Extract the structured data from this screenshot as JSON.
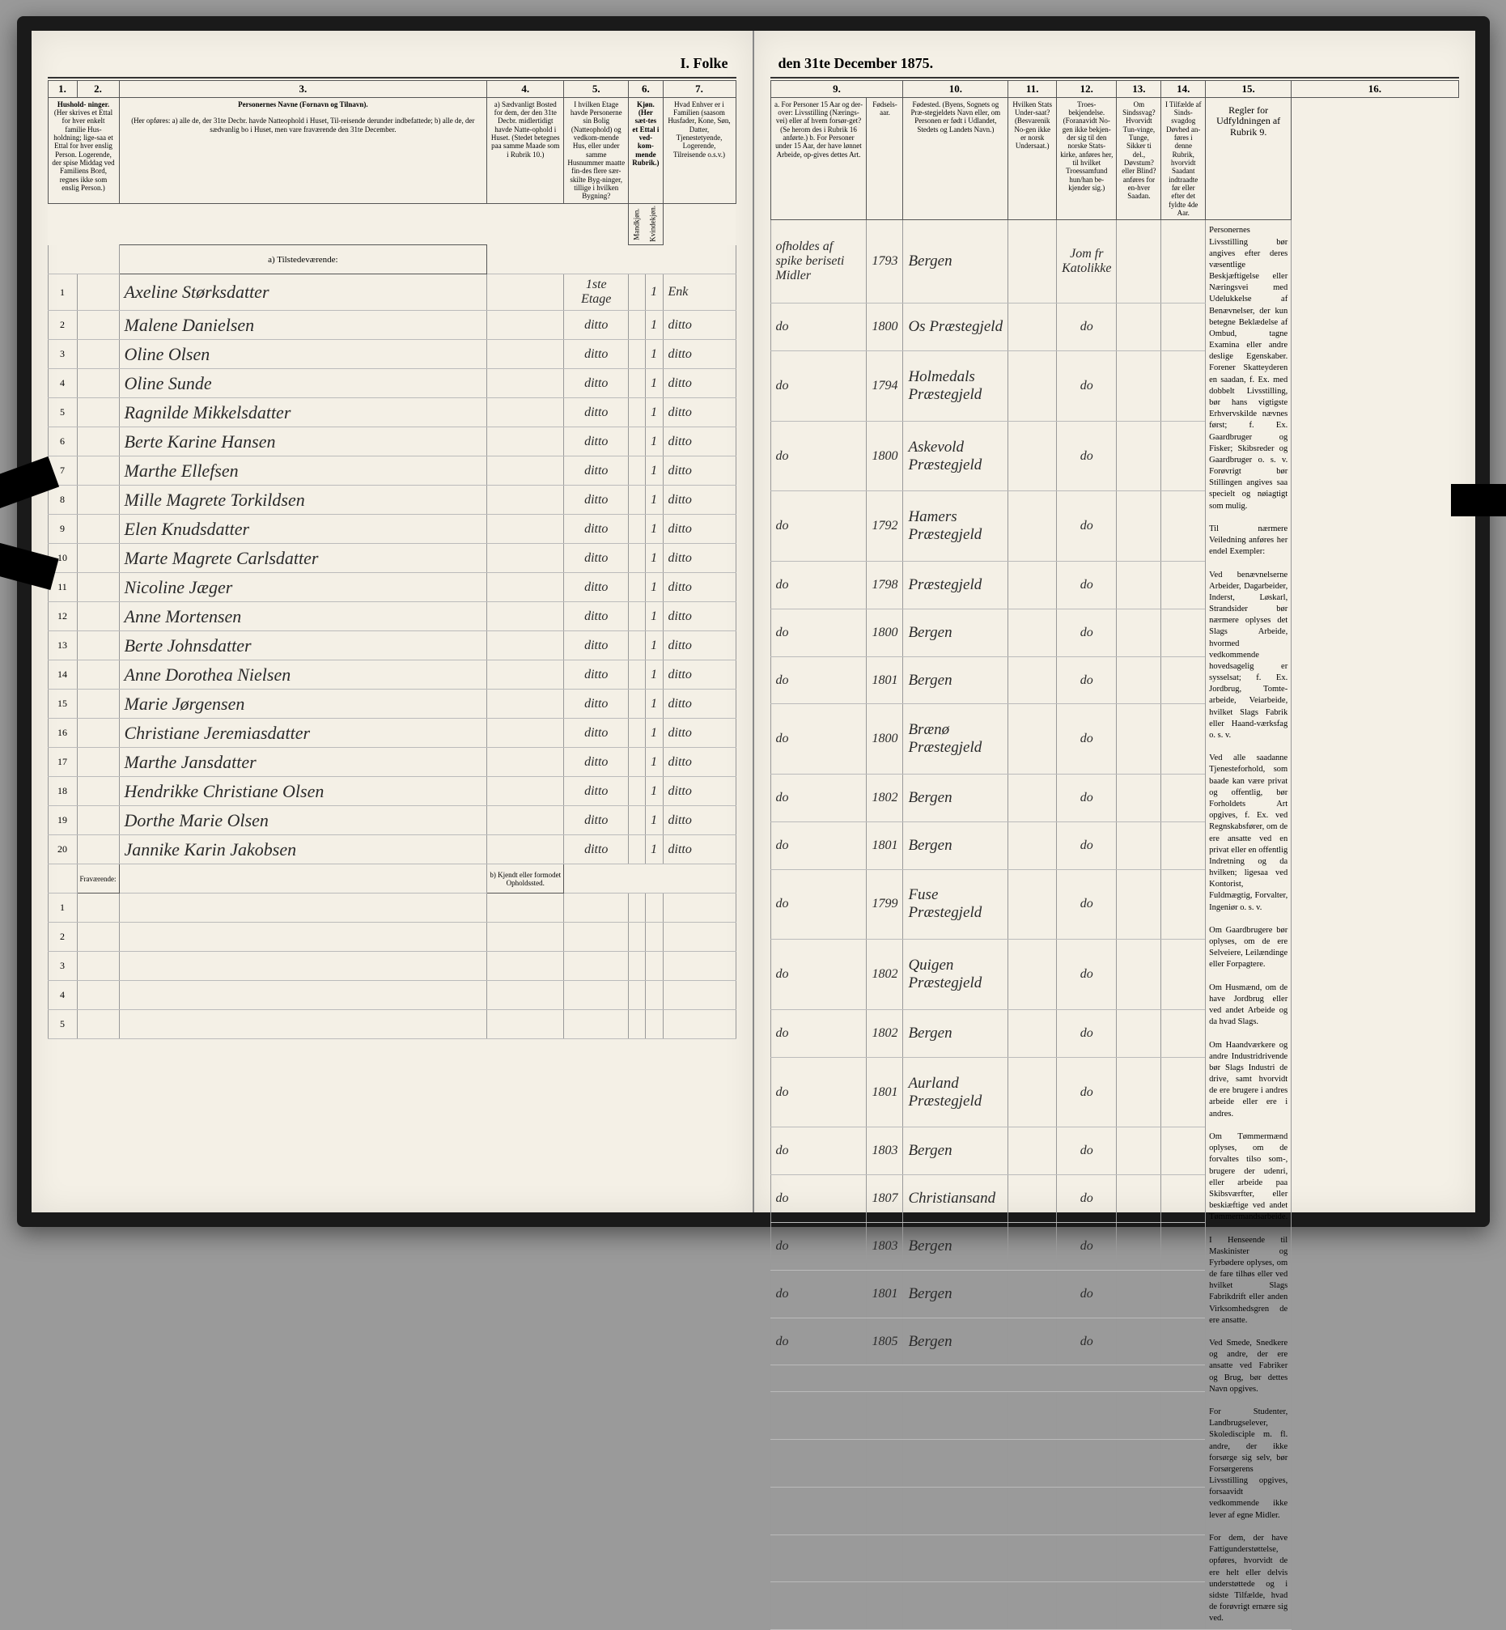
{
  "header": {
    "title_left": "I. Folke",
    "title_right": "den 31te December 1875."
  },
  "left_columns": {
    "nums": [
      "1.",
      "2.",
      "3.",
      "4.",
      "5.",
      "6.",
      "7."
    ],
    "h1": "Hushold-\nninger.",
    "h1_sub": "(Her skrives et Ettal for hver enkelt familie Hus-holdning; lige-saa et Ettal for hver enslig Person.\nLogerende, der spise Middag ved Familiens Bord, regnes ikke som enslig Person.)",
    "h3": "Personernes Navne (Fornavn og Tilnavn).",
    "h3_sub": "(Her opføres:\na) alle de, der 31te Decbr. havde Natteophold i Huset, Til-reisende derunder indbefattede;\nb) alle de, der sædvanlig bo i Huset, men vare fraværende den 31te December.",
    "h4": "a) Sædvanligt Bosted for dem, der den 31te Decbr. midlertidigt havde Natte-ophold i Huset.\n(Stedet betegnes paa samme Maade som i Rubrik 10.)",
    "h5": "I hvilken Etage havde Personerne sin Bolig (Natteophold) og vedkom-mende Hus, eller under samme Husnummer maatte fin-des flere sær-skilte Byg-ninger, tillige i hvilken Bygning?",
    "h6": "Kjøn.\n(Her sæt-tes et Ettal i ved-kom-mende Rubrik.)",
    "h6a": "Mandkjøn.",
    "h6b": "Kvindekjøn.",
    "h7": "Hvad Enhver er i Familien\n(saasom Husfader, Kone, Søn, Datter, Tjenestetyende, Logerende, Tilreisende o.s.v.)"
  },
  "right_columns": {
    "nums": [
      "9.",
      "10.",
      "11.",
      "12.",
      "13.",
      "14.",
      "15.",
      "16."
    ],
    "h9": "a. For Personer 15 Aar og der-over: Livsstilling (Nærings-vei) eller af hvem forsør-get? (Se herom des i Rubrik 16 anførte.)\nb. For Personer under 15 Aar, der have lønnet Arbeide, op-gives dettes Art.",
    "h9b": "Fødsels-aar.",
    "h10": "Fødested.\n(Byens, Sognets og Præ-stegjeldets Navn eller, om Personen er født i Udlandet, Stedets og Landets Navn.)",
    "h11": "Hvilken Stats Under-saat?\n(Besvarenik No-gen ikke er norsk Undersaat.)",
    "h12": "Troes-bekjendelse.\n(Foranavidt No-gen ikke bekjen-der sig til den norske Stats-kirke, anføres her, til hvilket Troessamfund hun/han be-kjender sig.)",
    "h13": "Om Sindssvag? Hvorvidt Tun-vinge, Tunge, Sikker ti del., Døvstum? eller Blind? anføres for en-hver Saadan.",
    "h14": "I Tilfælde af Sinds-svagdog Døvhed an-føres i denne Rubrik, hvorvidt Saadant indtraadte før eller efter det fyldte 4de Aar.",
    "h15": "Regler for Udfyldningen\naf\nRubrik 9."
  },
  "section_a": "a) Tilstedeværende:",
  "section_b": "Fraværende:",
  "section_b2": "b) Kjendt eller formodet Opholdssted.",
  "rows": [
    {
      "n": "1",
      "name": "Axeline Størksdatter",
      "etage": "1ste Etage",
      "k": "1",
      "fam": "Enk",
      "occ": "ofholdes af spike beriseti Midler",
      "year": "1793",
      "place": "Bergen",
      "rel": "Jom fr Katolikke"
    },
    {
      "n": "2",
      "name": "Malene Danielsen",
      "etage": "ditto",
      "k": "1",
      "fam": "ditto",
      "occ": "do",
      "year": "1800",
      "place": "Os Præstegjeld",
      "rel": "do"
    },
    {
      "n": "3",
      "name": "Oline Olsen",
      "etage": "ditto",
      "k": "1",
      "fam": "ditto",
      "occ": "do",
      "year": "1794",
      "place": "Holmedals Præstegjeld",
      "rel": "do"
    },
    {
      "n": "4",
      "name": "Oline Sunde",
      "etage": "ditto",
      "k": "1",
      "fam": "ditto",
      "occ": "do",
      "year": "1800",
      "place": "Askevold Præstegjeld",
      "rel": "do"
    },
    {
      "n": "5",
      "name": "Ragnilde Mikkelsdatter",
      "etage": "ditto",
      "k": "1",
      "fam": "ditto",
      "occ": "do",
      "year": "1792",
      "place": "Hamers Præstegjeld",
      "rel": "do"
    },
    {
      "n": "6",
      "name": "Berte Karine Hansen",
      "etage": "ditto",
      "k": "1",
      "fam": "ditto",
      "occ": "do",
      "year": "1798",
      "place": "Præstegjeld",
      "rel": "do"
    },
    {
      "n": "7",
      "name": "Marthe Ellefsen",
      "etage": "ditto",
      "k": "1",
      "fam": "ditto",
      "occ": "do",
      "year": "1800",
      "place": "Bergen",
      "rel": "do"
    },
    {
      "n": "8",
      "name": "Mille Magrete Torkildsen",
      "etage": "ditto",
      "k": "1",
      "fam": "ditto",
      "occ": "do",
      "year": "1801",
      "place": "Bergen",
      "rel": "do"
    },
    {
      "n": "9",
      "name": "Elen Knudsdatter",
      "etage": "ditto",
      "k": "1",
      "fam": "ditto",
      "occ": "do",
      "year": "1800",
      "place": "Brænø Præstegjeld",
      "rel": "do"
    },
    {
      "n": "10",
      "name": "Marte Magrete Carlsdatter",
      "etage": "ditto",
      "k": "1",
      "fam": "ditto",
      "occ": "do",
      "year": "1802",
      "place": "Bergen",
      "rel": "do"
    },
    {
      "n": "11",
      "name": "Nicoline Jæger",
      "etage": "ditto",
      "k": "1",
      "fam": "ditto",
      "occ": "do",
      "year": "1801",
      "place": "Bergen",
      "rel": "do"
    },
    {
      "n": "12",
      "name": "Anne Mortensen",
      "etage": "ditto",
      "k": "1",
      "fam": "ditto",
      "occ": "do",
      "year": "1799",
      "place": "Fuse Præstegjeld",
      "rel": "do"
    },
    {
      "n": "13",
      "name": "Berte Johnsdatter",
      "etage": "ditto",
      "k": "1",
      "fam": "ditto",
      "occ": "do",
      "year": "1802",
      "place": "Quigen Præstegjeld",
      "rel": "do"
    },
    {
      "n": "14",
      "name": "Anne Dorothea Nielsen",
      "etage": "ditto",
      "k": "1",
      "fam": "ditto",
      "occ": "do",
      "year": "1802",
      "place": "Bergen",
      "rel": "do"
    },
    {
      "n": "15",
      "name": "Marie Jørgensen",
      "etage": "ditto",
      "k": "1",
      "fam": "ditto",
      "occ": "do",
      "year": "1801",
      "place": "Aurland Præstegjeld",
      "rel": "do"
    },
    {
      "n": "16",
      "name": "Christiane Jeremiasdatter",
      "etage": "ditto",
      "k": "1",
      "fam": "ditto",
      "occ": "do",
      "year": "1803",
      "place": "Bergen",
      "rel": "do"
    },
    {
      "n": "17",
      "name": "Marthe Jansdatter",
      "etage": "ditto",
      "k": "1",
      "fam": "ditto",
      "occ": "do",
      "year": "1807",
      "place": "Christiansand",
      "rel": "do"
    },
    {
      "n": "18",
      "name": "Hendrikke Christiane Olsen",
      "etage": "ditto",
      "k": "1",
      "fam": "ditto",
      "occ": "do",
      "year": "1803",
      "place": "Bergen",
      "rel": "do"
    },
    {
      "n": "19",
      "name": "Dorthe Marie Olsen",
      "etage": "ditto",
      "k": "1",
      "fam": "ditto",
      "occ": "do",
      "year": "1801",
      "place": "Bergen",
      "rel": "do"
    },
    {
      "n": "20",
      "name": "Jannike Karin Jakobsen",
      "etage": "ditto",
      "k": "1",
      "fam": "ditto",
      "occ": "do",
      "year": "1805",
      "place": "Bergen",
      "rel": "do"
    }
  ],
  "blank_rows": [
    "1",
    "2",
    "3",
    "4",
    "5"
  ],
  "instructions_text": "Personernes Livsstilling bør angives efter deres væsentlige Beskjæftigelse eller Næringsvei med Udelukkelse af Benævnelser, der kun betegne Beklædelse af Ombud, tagne Examina eller andre deslige Egenskaber. Forener Skatteyderen en saadan, f. Ex. med dobbelt Livsstilling, bør hans vigtigste Erhvervskilde nævnes først; f. Ex. Gaardbruger og Fisker; Skibsreder og Gaardbruger o. s. v. Forøvrigt bør Stillingen angives saa specielt og nøiagtigt som mulig.\n\nTil nærmere Veiledning anføres her endel Exempler:\n\nVed benævnelserne Arbeider, Dagarbeider, Inderst, Løskarl, Strandsider bør nærmere oplyses det Slags Arbeide, hvormed vedkommende hovedsagelig er sysselsat; f. Ex. Jordbrug, Tomte-arbeide, Veiarbeide, hvilket Slags Fabrik eller Haand-værksfag o. s. v.\n\nVed alle saadanne Tjenesteforhold, som baade kan være privat og offentlig, bør Forholdets Art opgives, f. Ex. ved Regnskabsfører, om de ere ansatte ved en privat eller en offentlig Indretning og da hvilken; ligesaa ved Kontorist, Fuldmægtig, Forvalter, Ingeniør o. s. v.\n\nOm Gaardbrugere bør oplyses, om de ere Selveiere, Leilændinge eller Forpagtere.\n\nOm Husmænd, om de have Jordbrug eller ved andet Arbeide og da hvad Slags.\n\nOm Haandværkere og andre Industridrivende bør Slags Industri de drive, samt hvorvidt de ere brugere i andres arbeide eller ere i andres.\n\nOm Tømmermænd oplyses, om de forvaltes tilso som-, brugere der udenri, eller arbeide paa Skibsværfter, eller beskiæftige ved andet Tømmermandsarbeide.\n\nI Henseende til Maskinister og Fyrbødere oplyses, om de fare tilhøs eller ved hvilket Slags Fabrikdrift eller anden Virksomhedsgren de ere ansatte.\n\nVed Smede, Snedkere og andre, der ere ansatte ved Fabriker og Brug, bør dettes Navn opgives.\n\nFor Studenter, Landbrugselever, Skoledisciple m. fl. andre, der ikke forsørge sig selv, bør Forsørgerens Livsstilling opgives, forsaavidt vedkommende ikke lever af egne Midler.\n\nFor dem, der have Fattigunderstøttelse, opføres, hvorvidt de ere helt eller delvis understøttede og i sidste Tilfælde, hvad de forøvrigt ernære sig ved."
}
